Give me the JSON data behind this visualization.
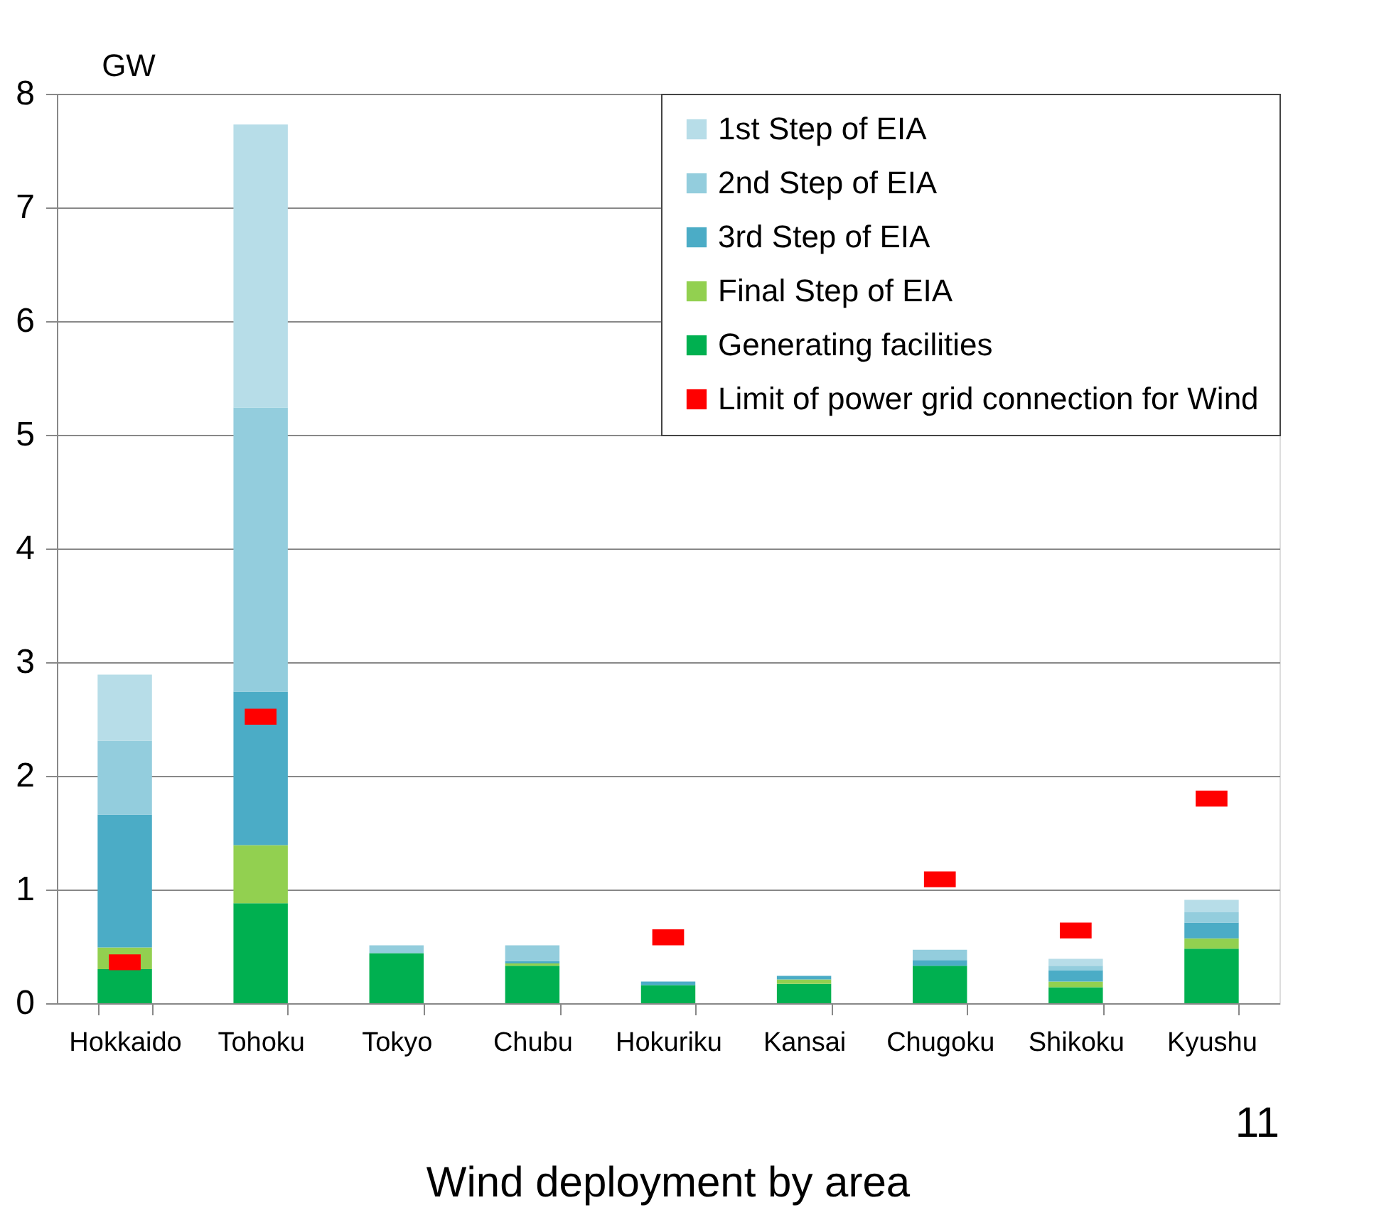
{
  "chart_data": {
    "type": "bar",
    "title": "Wind deployment by area",
    "ylabel": "GW",
    "annotations": [
      "11"
    ],
    "categories": [
      "Hokkaido",
      "Tohoku",
      "Tokyo",
      "Chubu",
      "Hokuriku",
      "Kansai",
      "Chugoku",
      "Shikoku",
      "Kyushu"
    ],
    "stacked": true,
    "ylim": [
      0,
      8
    ],
    "yticks": [
      0,
      1,
      2,
      3,
      4,
      5,
      6,
      7,
      8
    ],
    "grid": "y",
    "legend": "top right",
    "series": [
      {
        "name": "Generating facilities",
        "color": "#00b050",
        "values": [
          0.3,
          0.88,
          0.44,
          0.33,
          0.16,
          0.17,
          0.33,
          0.14,
          0.48
        ]
      },
      {
        "name": "Final Step of EIA",
        "color": "#92d050",
        "values": [
          0.19,
          0.51,
          0,
          0.02,
          0,
          0.04,
          0,
          0.05,
          0.09
        ]
      },
      {
        "name": "3rd Step of EIA",
        "color": "#4bacc6",
        "values": [
          1.17,
          1.35,
          0,
          0.02,
          0.03,
          0.03,
          0.05,
          0.1,
          0.14
        ]
      },
      {
        "name": "2nd Step of EIA",
        "color": "#93cddd",
        "values": [
          0.65,
          2.5,
          0.07,
          0.14,
          0,
          0,
          0.09,
          0.04,
          0.09
        ]
      },
      {
        "name": "1st Step of EIA",
        "color": "#b7dde8",
        "values": [
          0.58,
          2.49,
          0,
          0,
          0,
          0,
          0,
          0.06,
          0.11
        ]
      },
      {
        "name": "Limit of power grid connection for Wind",
        "type": "scatter",
        "color": "#ff0000",
        "values": [
          0.36,
          2.52,
          null,
          null,
          0.58,
          null,
          1.09,
          0.64,
          1.8
        ]
      }
    ]
  }
}
